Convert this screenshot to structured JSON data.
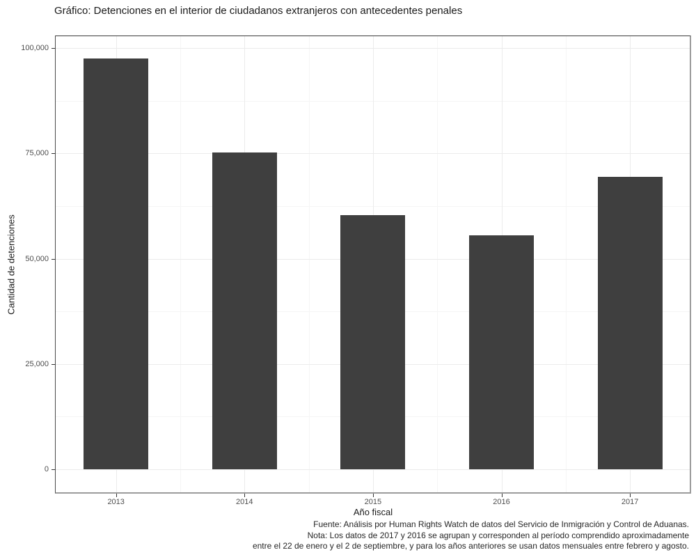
{
  "chart_data": {
    "type": "bar",
    "title": "Gráfico: Detenciones en el interior de ciudadanos extranjeros con antecedentes penales",
    "xlabel": "Año fiscal",
    "ylabel": "Cantidad de detenciones",
    "categories": [
      "2013",
      "2014",
      "2015",
      "2016",
      "2017"
    ],
    "values": [
      97600,
      75200,
      60300,
      55500,
      69400
    ],
    "ylim": [
      0,
      100000
    ],
    "y_ticks": [
      {
        "value": 0,
        "label": "0"
      },
      {
        "value": 25000,
        "label": "25,000"
      },
      {
        "value": 50000,
        "label": "50,000"
      },
      {
        "value": 75000,
        "label": "75,000"
      },
      {
        "value": 100000,
        "label": "100,000"
      }
    ],
    "y_minor_ticks": [
      12500,
      37500,
      62500,
      87500
    ],
    "grid": true,
    "legend": "none",
    "bar_color": "#3f3f3f",
    "caption_lines": [
      "Fuente: Análisis por Human Rights Watch de datos del Servicio de Inmigración y Control de Aduanas.",
      "Nota: Los datos de 2017 y 2016 se agrupan y corresponden al período comprendido aproximadamente",
      "entre el 22 de enero y el 2 de septiembre, y para los años anteriores se usan datos mensuales entre febrero y agosto."
    ],
    "colors": {
      "bar": "#3f3f3f",
      "grid_major": "#ebebeb",
      "grid_minor": "#f5f5f5",
      "axis_text": "#4d4d4d",
      "tick_mark": "#333333",
      "panel_border_dark": "#3d3d3d",
      "panel_border_light": "#9b9b9b"
    }
  }
}
